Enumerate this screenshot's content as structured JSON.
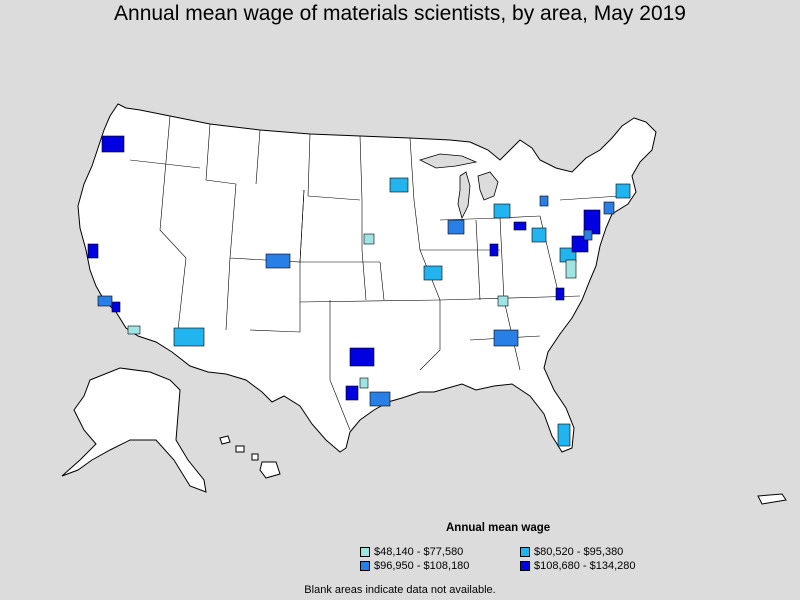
{
  "title": "Annual mean wage of materials scientists, by area, May 2019",
  "legend": {
    "title": "Annual mean wage",
    "items": [
      {
        "label": "$48,140 - $77,580",
        "color": "#9fe3e3"
      },
      {
        "label": "$80,520 - $95,380",
        "color": "#22b4ee"
      },
      {
        "label": "$96,950 - $108,180",
        "color": "#2a7fe6"
      },
      {
        "label": "$108,680 - $134,280",
        "color": "#0000e0"
      }
    ]
  },
  "footnote": "Blank areas indicate data not available.",
  "colors": {
    "background": "#dcdcdc",
    "land": "#ffffff",
    "border": "#000000",
    "tier1": "#9fe3e3",
    "tier2": "#22b4ee",
    "tier3": "#2a7fe6",
    "tier4": "#0000e0"
  }
}
